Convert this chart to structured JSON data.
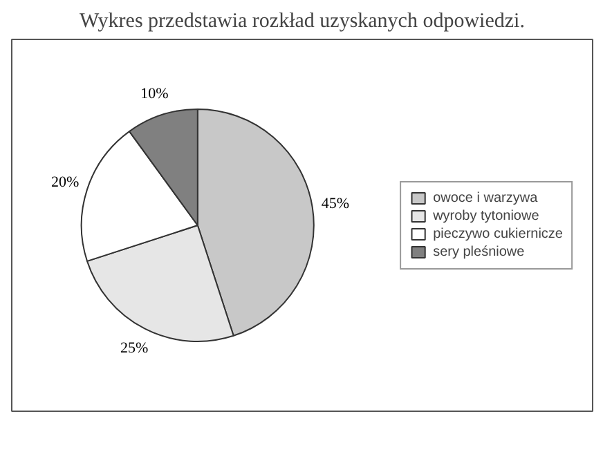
{
  "chart_data": {
    "type": "pie",
    "title": "Wykres przedstawia rozkład uzyskanych odpowiedzi.",
    "categories": [
      "owoce i warzywa",
      "wyroby tytoniowe",
      "pieczywo cukiernicze",
      "sery pleśniowe"
    ],
    "values": [
      45,
      25,
      20,
      10
    ],
    "colors": [
      "#c8c8c8",
      "#e6e6e6",
      "#ffffff",
      "#808080"
    ],
    "value_labels": [
      "45%",
      "25%",
      "20%",
      "10%"
    ],
    "legend": "right"
  }
}
